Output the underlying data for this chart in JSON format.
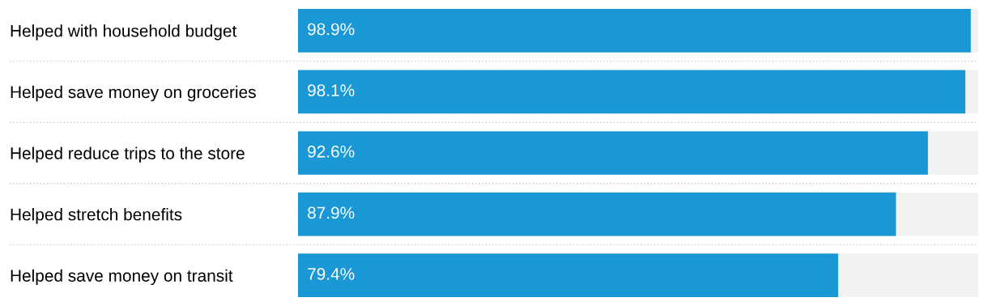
{
  "chart_data": {
    "type": "bar",
    "orientation": "horizontal",
    "categories": [
      "Helped with household budget",
      "Helped save money on groceries",
      "Helped reduce trips to the store",
      "Helped stretch benefits",
      "Helped save money on transit"
    ],
    "values": [
      98.9,
      98.1,
      92.6,
      87.9,
      79.4
    ],
    "value_labels": [
      "98.9%",
      "98.1%",
      "92.6%",
      "87.9%",
      "79.4%"
    ],
    "color": "#1a98d5",
    "xlim": [
      0,
      100
    ],
    "tick_labels": "y",
    "grid": false,
    "legend": false
  }
}
